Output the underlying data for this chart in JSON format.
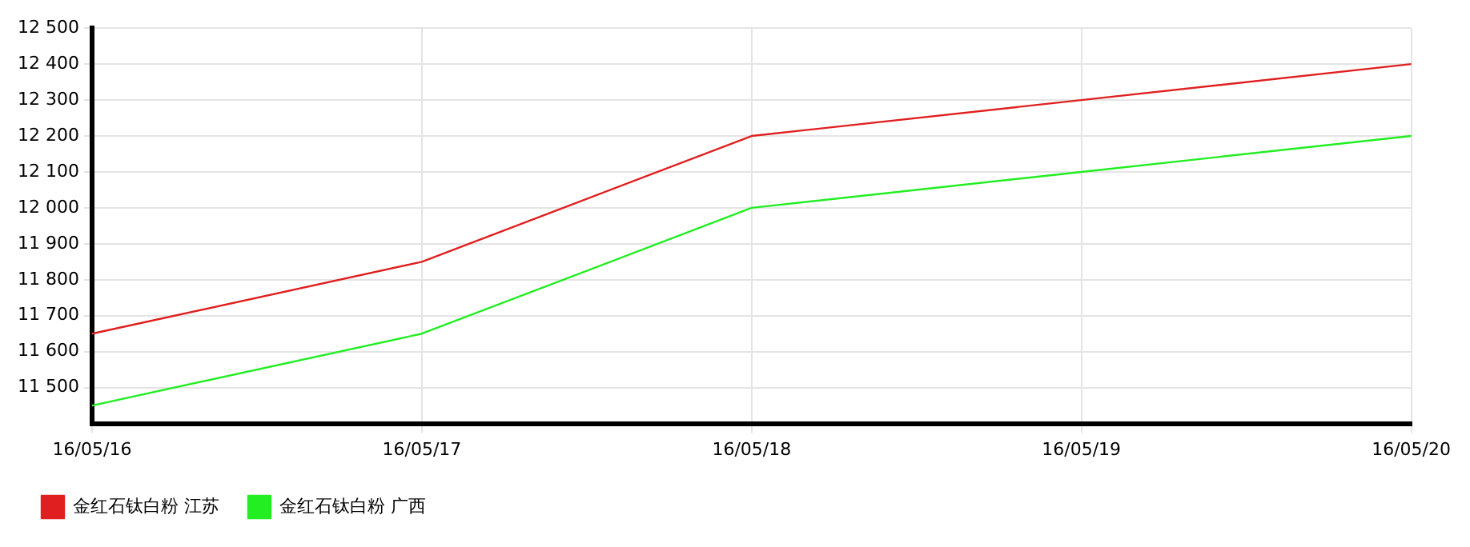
{
  "chart_data": {
    "type": "line",
    "categories": [
      "16/05/16",
      "16/05/17",
      "16/05/18",
      "16/05/19",
      "16/05/20"
    ],
    "series": [
      {
        "name": "金红石钛白粉 江苏",
        "color": "#e02020",
        "values": [
          11650,
          11850,
          12200,
          12300,
          12400
        ]
      },
      {
        "name": "金红石钛白粉 广西",
        "color": "#22ee22",
        "values": [
          11450,
          11650,
          12000,
          12100,
          12200
        ]
      }
    ],
    "ylim": [
      11400,
      12500
    ],
    "yticks": [
      {
        "value": 11500,
        "label": "11 500"
      },
      {
        "value": 11600,
        "label": "11 600"
      },
      {
        "value": 11700,
        "label": "11 700"
      },
      {
        "value": 11800,
        "label": "11 800"
      },
      {
        "value": 11900,
        "label": "11 900"
      },
      {
        "value": 12000,
        "label": "12 000"
      },
      {
        "value": 12100,
        "label": "12 100"
      },
      {
        "value": 12200,
        "label": "12 200"
      },
      {
        "value": 12300,
        "label": "12 300"
      },
      {
        "value": 12400,
        "label": "12 400"
      },
      {
        "value": 12500,
        "label": "12 500"
      }
    ],
    "grid": true,
    "legend": "bottom left",
    "marker": "none",
    "line_style": "solid"
  }
}
